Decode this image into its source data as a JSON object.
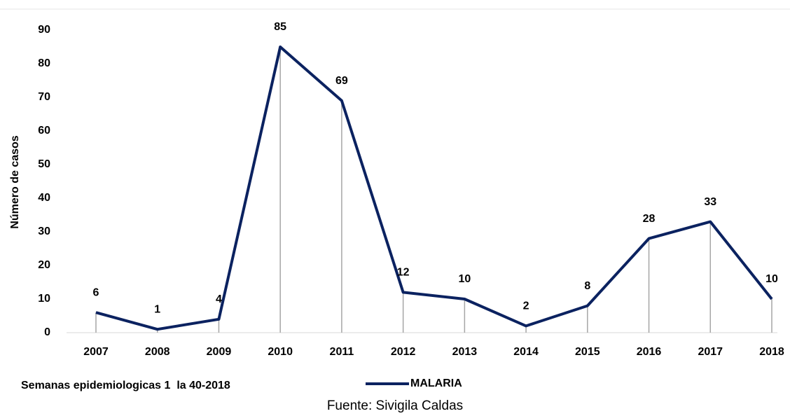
{
  "chart_data": {
    "type": "line",
    "y_label": "Número de casos",
    "subtitle": "Semanas epidemiologicas 1  la 40-2018",
    "source": "Fuente: Sivigila Caldas",
    "categories": [
      "2007",
      "2008",
      "2009",
      "2010",
      "2011",
      "2012",
      "2013",
      "2014",
      "2015",
      "2016",
      "2017",
      "2018"
    ],
    "series": [
      {
        "name": "MALARIA",
        "color": "#0b2260",
        "values": [
          6,
          1,
          4,
          85,
          69,
          12,
          10,
          2,
          8,
          28,
          33,
          10
        ]
      }
    ],
    "ylim": [
      0,
      90
    ],
    "yticks": [
      0,
      10,
      20,
      30,
      40,
      50,
      60,
      70,
      80,
      90
    ],
    "drop_lines": true,
    "data_labels": true,
    "legend": "bottom"
  }
}
